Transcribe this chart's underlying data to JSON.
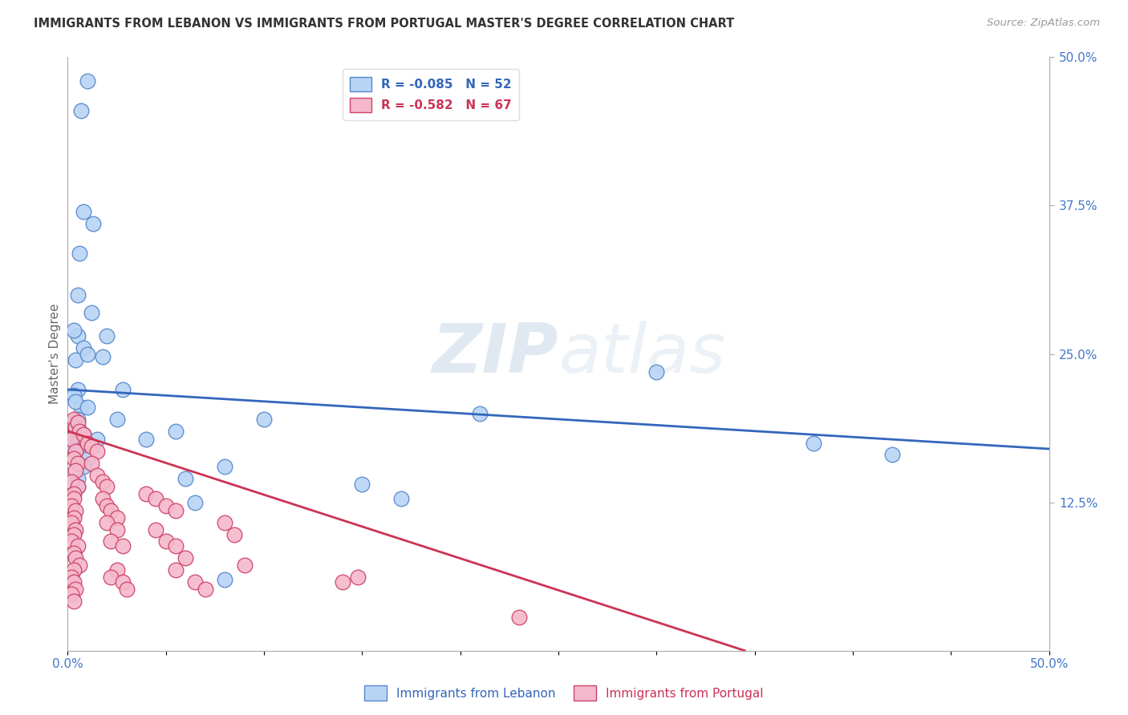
{
  "title": "IMMIGRANTS FROM LEBANON VS IMMIGRANTS FROM PORTUGAL MASTER'S DEGREE CORRELATION CHART",
  "source": "Source: ZipAtlas.com",
  "ylabel": "Master's Degree",
  "legend_label1": "R = -0.085   N = 52",
  "legend_label2": "R = -0.582   N = 67",
  "legend_label1_bottom": "Immigrants from Lebanon",
  "legend_label2_bottom": "Immigrants from Portugal",
  "color_blue_fill": "#b8d4f5",
  "color_pink_fill": "#f5b8cc",
  "color_blue_edge": "#5588cc",
  "color_pink_edge": "#cc4466",
  "color_blue_line": "#3366bb",
  "color_pink_line": "#cc3355",
  "color_blue_text": "#3366bb",
  "color_pink_text": "#cc3355",
  "xmin": 0.0,
  "xmax": 0.5,
  "ymin": 0.0,
  "ymax": 0.5,
  "blue_points": [
    [
      0.007,
      0.455
    ],
    [
      0.01,
      0.48
    ],
    [
      0.008,
      0.37
    ],
    [
      0.013,
      0.36
    ],
    [
      0.006,
      0.335
    ],
    [
      0.005,
      0.3
    ],
    [
      0.012,
      0.285
    ],
    [
      0.005,
      0.265
    ],
    [
      0.003,
      0.27
    ],
    [
      0.008,
      0.255
    ],
    [
      0.004,
      0.245
    ],
    [
      0.01,
      0.25
    ],
    [
      0.02,
      0.265
    ],
    [
      0.018,
      0.248
    ],
    [
      0.005,
      0.22
    ],
    [
      0.003,
      0.215
    ],
    [
      0.007,
      0.205
    ],
    [
      0.004,
      0.21
    ],
    [
      0.01,
      0.205
    ],
    [
      0.028,
      0.22
    ],
    [
      0.003,
      0.192
    ],
    [
      0.005,
      0.195
    ],
    [
      0.005,
      0.188
    ],
    [
      0.003,
      0.185
    ],
    [
      0.004,
      0.185
    ],
    [
      0.006,
      0.185
    ],
    [
      0.003,
      0.18
    ],
    [
      0.005,
      0.18
    ],
    [
      0.008,
      0.182
    ],
    [
      0.015,
      0.178
    ],
    [
      0.003,
      0.175
    ],
    [
      0.005,
      0.175
    ],
    [
      0.003,
      0.17
    ],
    [
      0.005,
      0.168
    ],
    [
      0.01,
      0.162
    ],
    [
      0.008,
      0.155
    ],
    [
      0.005,
      0.145
    ],
    [
      0.005,
      0.138
    ],
    [
      0.025,
      0.195
    ],
    [
      0.055,
      0.185
    ],
    [
      0.04,
      0.178
    ],
    [
      0.08,
      0.155
    ],
    [
      0.1,
      0.195
    ],
    [
      0.15,
      0.14
    ],
    [
      0.17,
      0.128
    ],
    [
      0.21,
      0.2
    ],
    [
      0.3,
      0.235
    ],
    [
      0.38,
      0.175
    ],
    [
      0.42,
      0.165
    ],
    [
      0.06,
      0.145
    ],
    [
      0.065,
      0.125
    ],
    [
      0.08,
      0.06
    ]
  ],
  "pink_points": [
    [
      0.003,
      0.195
    ],
    [
      0.004,
      0.188
    ],
    [
      0.005,
      0.192
    ],
    [
      0.006,
      0.185
    ],
    [
      0.002,
      0.178
    ],
    [
      0.004,
      0.168
    ],
    [
      0.003,
      0.162
    ],
    [
      0.005,
      0.158
    ],
    [
      0.004,
      0.152
    ],
    [
      0.002,
      0.142
    ],
    [
      0.005,
      0.138
    ],
    [
      0.003,
      0.132
    ],
    [
      0.003,
      0.128
    ],
    [
      0.002,
      0.122
    ],
    [
      0.004,
      0.118
    ],
    [
      0.003,
      0.112
    ],
    [
      0.002,
      0.108
    ],
    [
      0.004,
      0.102
    ],
    [
      0.003,
      0.098
    ],
    [
      0.002,
      0.092
    ],
    [
      0.005,
      0.088
    ],
    [
      0.003,
      0.082
    ],
    [
      0.004,
      0.078
    ],
    [
      0.006,
      0.072
    ],
    [
      0.003,
      0.068
    ],
    [
      0.002,
      0.062
    ],
    [
      0.003,
      0.058
    ],
    [
      0.004,
      0.052
    ],
    [
      0.002,
      0.048
    ],
    [
      0.003,
      0.042
    ],
    [
      0.008,
      0.182
    ],
    [
      0.01,
      0.175
    ],
    [
      0.012,
      0.172
    ],
    [
      0.015,
      0.168
    ],
    [
      0.012,
      0.158
    ],
    [
      0.015,
      0.148
    ],
    [
      0.018,
      0.142
    ],
    [
      0.02,
      0.138
    ],
    [
      0.018,
      0.128
    ],
    [
      0.02,
      0.122
    ],
    [
      0.022,
      0.118
    ],
    [
      0.025,
      0.112
    ],
    [
      0.02,
      0.108
    ],
    [
      0.025,
      0.102
    ],
    [
      0.022,
      0.092
    ],
    [
      0.028,
      0.088
    ],
    [
      0.025,
      0.068
    ],
    [
      0.022,
      0.062
    ],
    [
      0.028,
      0.058
    ],
    [
      0.03,
      0.052
    ],
    [
      0.04,
      0.132
    ],
    [
      0.045,
      0.128
    ],
    [
      0.05,
      0.122
    ],
    [
      0.055,
      0.118
    ],
    [
      0.045,
      0.102
    ],
    [
      0.05,
      0.092
    ],
    [
      0.055,
      0.088
    ],
    [
      0.06,
      0.078
    ],
    [
      0.055,
      0.068
    ],
    [
      0.065,
      0.058
    ],
    [
      0.07,
      0.052
    ],
    [
      0.08,
      0.108
    ],
    [
      0.085,
      0.098
    ],
    [
      0.09,
      0.072
    ],
    [
      0.14,
      0.058
    ],
    [
      0.148,
      0.062
    ],
    [
      0.23,
      0.028
    ]
  ],
  "blue_regression": {
    "x_start": 0.0,
    "y_start": 0.22,
    "x_end": 0.5,
    "y_end": 0.17
  },
  "pink_regression": {
    "x_start": 0.0,
    "y_start": 0.185,
    "x_end": 0.345,
    "y_end": 0.0
  },
  "watermark_zip": "ZIP",
  "watermark_atlas": "atlas",
  "background_color": "#ffffff",
  "grid_color": "#cccccc",
  "title_color": "#333333",
  "axis_tick_color": "#4477cc"
}
